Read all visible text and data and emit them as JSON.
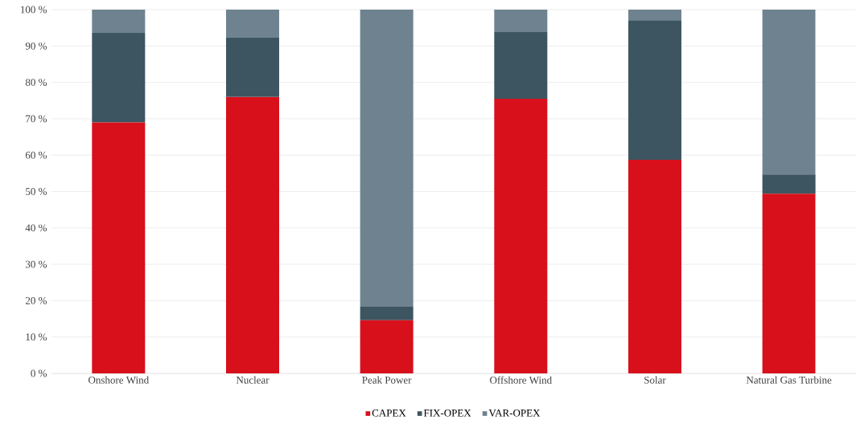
{
  "chart_data": {
    "type": "bar",
    "stacked": true,
    "categories": [
      "Onshore Wind",
      "Nuclear",
      "Peak Power",
      "Offshore Wind",
      "Solar",
      "Natural Gas Turbine"
    ],
    "series": [
      {
        "name": "CAPEX",
        "color": "#d7101c",
        "values": [
          69,
          76,
          14.6,
          75.5,
          58.7,
          49.4
        ]
      },
      {
        "name": "FIX-OPEX",
        "color": "#3d5560",
        "values": [
          24.6,
          16.3,
          3.7,
          18.3,
          38.4,
          5.3
        ]
      },
      {
        "name": "VAR-OPEX",
        "color": "#6e838f",
        "values": [
          6.4,
          7.7,
          81.7,
          6.2,
          2.9,
          45.3
        ]
      }
    ],
    "ylim": [
      0,
      100
    ],
    "yticks": [
      {
        "value": 0,
        "label": "0 %"
      },
      {
        "value": 10,
        "label": "10 %"
      },
      {
        "value": 20,
        "label": "20 %"
      },
      {
        "value": 30,
        "label": "30 %"
      },
      {
        "value": 40,
        "label": "40 %"
      },
      {
        "value": 50,
        "label": "50 %"
      },
      {
        "value": 60,
        "label": "60 %"
      },
      {
        "value": 70,
        "label": "70 %"
      },
      {
        "value": 80,
        "label": "80 %"
      },
      {
        "value": 90,
        "label": "90 %"
      },
      {
        "value": 100,
        "label": "100 %"
      }
    ],
    "grid": "y",
    "legend": "bottom"
  }
}
